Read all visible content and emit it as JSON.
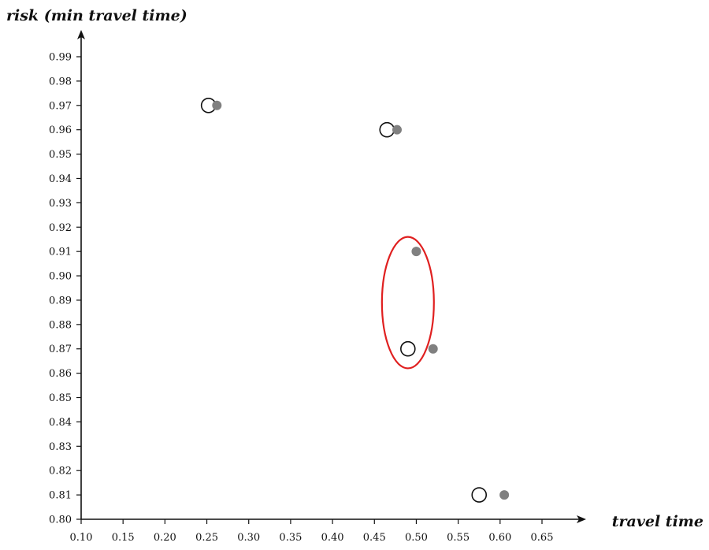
{
  "chart_data": {
    "type": "scatter",
    "xlabel": "travel time",
    "ylabel": "risk (min travel time)",
    "xlim": [
      0.1,
      0.65
    ],
    "ylim": [
      0.8,
      0.99
    ],
    "x_ticks": [
      "0.10",
      "0.15",
      "0.20",
      "0.25",
      "0.30",
      "0.35",
      "0.40",
      "0.45",
      "0.50",
      "0.55",
      "0.60",
      "0.65"
    ],
    "y_ticks": [
      "0.80",
      "0.81",
      "0.82",
      "0.83",
      "0.84",
      "0.85",
      "0.86",
      "0.87",
      "0.88",
      "0.89",
      "0.90",
      "0.91",
      "0.92",
      "0.93",
      "0.94",
      "0.95",
      "0.96",
      "0.97",
      "0.98",
      "0.99"
    ],
    "grid": false,
    "series": [
      {
        "marker": "open-circle",
        "color": "#111111",
        "points": [
          {
            "x": 0.252,
            "y": 0.97
          },
          {
            "x": 0.465,
            "y": 0.96
          },
          {
            "x": 0.49,
            "y": 0.87
          },
          {
            "x": 0.575,
            "y": 0.81
          }
        ]
      },
      {
        "marker": "filled-circle",
        "color": "#808080",
        "points": [
          {
            "x": 0.262,
            "y": 0.97
          },
          {
            "x": 0.477,
            "y": 0.96
          },
          {
            "x": 0.5,
            "y": 0.91
          },
          {
            "x": 0.52,
            "y": 0.87
          },
          {
            "x": 0.605,
            "y": 0.81
          }
        ]
      }
    ],
    "annotations": [
      {
        "type": "ellipse",
        "color": "#e02020",
        "center": {
          "x": 0.49,
          "y": 0.889
        },
        "radius_x": 0.031,
        "radius_y": 0.027
      }
    ]
  }
}
